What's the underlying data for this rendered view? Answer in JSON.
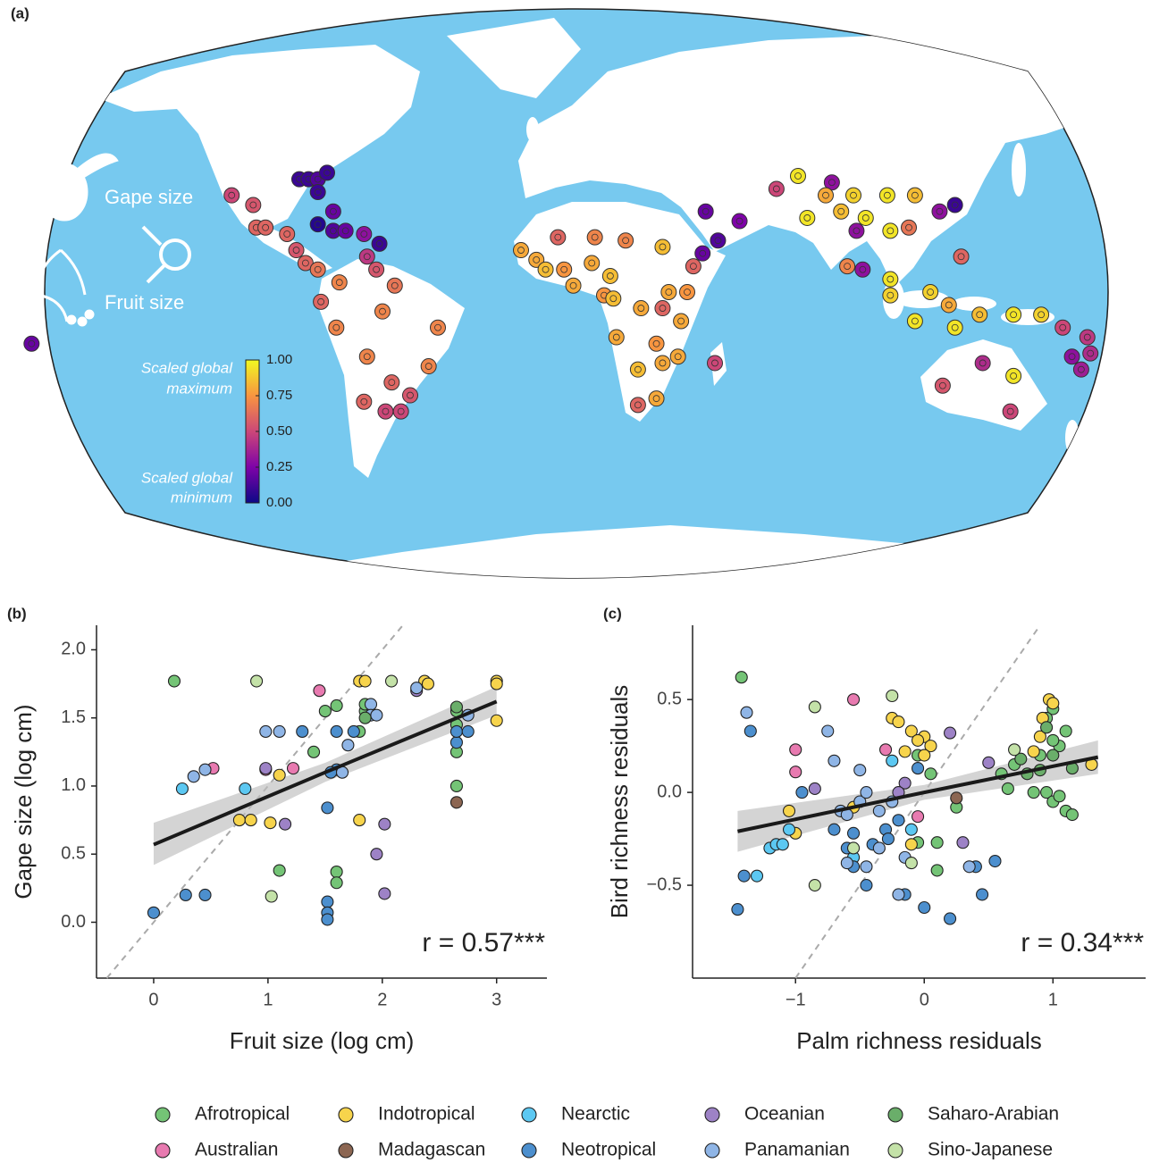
{
  "chart_data": [
    {
      "type": "map",
      "panel_label": "(a)",
      "arrow_labels": [
        "Gape size",
        "Fruit size"
      ],
      "colorbar_top_label": [
        "Scaled global",
        "maximum"
      ],
      "colorbar_bottom_label": [
        "Scaled global",
        "minimum"
      ],
      "colorbar": {
        "lim": [
          0,
          1
        ],
        "ticks": [
          {
            "value": 0,
            "label": "0.00"
          },
          {
            "value": 0.25,
            "label": "0.25"
          },
          {
            "value": 0.5,
            "label": "0.50"
          },
          {
            "value": 0.75,
            "label": "0.75"
          },
          {
            "value": 1,
            "label": "1.00"
          }
        ],
        "colors": [
          "#0d0887",
          "#7e03a8",
          "#cc4778",
          "#f89540",
          "#f0f921"
        ]
      },
      "points": {
        "lon": [
          -112,
          -105,
          -104,
          -101,
          -94,
          -91,
          -88,
          -84,
          -90,
          -87,
          -84,
          -81,
          -84,
          -79,
          -84,
          -79,
          -75,
          -69,
          -64,
          -68,
          -65,
          -77,
          -83,
          -63,
          -78,
          -45,
          -68,
          -48,
          -60,
          -69,
          -54,
          -62,
          -57,
          -59,
          -18,
          -13,
          -6,
          6,
          16,
          28,
          -10,
          -4,
          5,
          11,
          -1,
          9,
          12,
          21,
          30,
          36,
          28,
          13,
          26,
          34,
          20,
          28,
          26,
          20,
          38,
          41,
          45,
          33,
          42,
          53,
          46,
          65,
          72,
          83,
          81,
          90,
          101,
          110,
          75,
          86,
          94,
          102,
          108,
          91,
          93,
          88,
          102,
          102,
          115,
          123,
          118,
          121,
          123,
          110,
          131,
          142,
          151,
          125,
          132,
          142,
          119,
          141,
          158,
          166,
          161,
          167,
          164,
          -177
        ],
        "lat": [
          30,
          27,
          20,
          20,
          18,
          13,
          9,
          7,
          35,
          35,
          35,
          37,
          31,
          25,
          21,
          19,
          19,
          18,
          15,
          11,
          7,
          3,
          -3,
          -6,
          -11,
          -11,
          -20,
          -23,
          -28,
          -34,
          -32,
          -37,
          -37,
          2,
          13,
          10,
          17,
          17,
          16,
          14,
          7,
          7,
          9,
          5,
          2,
          -1,
          -2,
          -5,
          0,
          0,
          -5,
          -14,
          -16,
          -9,
          -24,
          -22,
          -33,
          -35,
          8,
          12,
          -22,
          -20,
          25,
          22,
          16,
          32,
          36,
          34,
          30,
          30,
          30,
          30,
          23,
          25,
          23,
          19,
          20,
          19,
          7,
          8,
          4,
          -1,
          0,
          27,
          25,
          -4,
          -11,
          -9,
          -7,
          -7,
          -7,
          11,
          -22,
          -26,
          -29,
          -37,
          -11,
          -14,
          -20,
          -19,
          -24,
          -16
        ],
        "values": [
          0.5,
          0.55,
          0.6,
          0.6,
          0.6,
          0.55,
          0.6,
          0.65,
          0.1,
          0.1,
          0.15,
          0.1,
          0.1,
          0.2,
          0.05,
          0.15,
          0.2,
          0.3,
          0.1,
          0.45,
          0.55,
          0.7,
          0.6,
          0.7,
          0.7,
          0.7,
          0.7,
          0.7,
          0.6,
          0.6,
          0.55,
          0.5,
          0.5,
          0.65,
          0.8,
          0.8,
          0.6,
          0.7,
          0.7,
          0.85,
          0.85,
          0.75,
          0.8,
          0.85,
          0.8,
          0.75,
          0.85,
          0.8,
          0.8,
          0.75,
          0.6,
          0.8,
          0.75,
          0.8,
          0.85,
          0.8,
          0.8,
          0.6,
          0.6,
          0.2,
          0.5,
          0.8,
          0.2,
          0.25,
          0.15,
          0.5,
          0.95,
          0.3,
          0.8,
          0.9,
          0.95,
          0.85,
          0.95,
          0.85,
          0.95,
          0.95,
          0.65,
          0.3,
          0.3,
          0.7,
          0.95,
          0.9,
          0.9,
          0.1,
          0.3,
          0.8,
          0.95,
          0.95,
          0.85,
          0.95,
          0.9,
          0.6,
          0.4,
          0.95,
          0.55,
          0.5,
          0.5,
          0.45,
          0.3,
          0.4,
          0.35,
          0.2
        ]
      }
    },
    {
      "type": "scatter",
      "panel_label": "(b)",
      "x_label": "Fruit size (log cm)",
      "y_label": "Gape size (log cm)",
      "annotation": "r = 0.57***",
      "xlim": [
        -0.5,
        3.44
      ],
      "ylim": [
        -0.41,
        2.18
      ],
      "xticks": [
        0,
        1,
        2,
        3
      ],
      "yticks": [
        {
          "value": 0,
          "label": "0.0"
        },
        0.5,
        {
          "value": 1,
          "label": "1.0"
        },
        1.5,
        {
          "value": 2,
          "label": "2.0"
        }
      ],
      "identity_line": true,
      "fit": {
        "x": [
          0,
          1.5,
          3
        ],
        "y": [
          0.57,
          1.1,
          1.62
        ],
        "lower": [
          0.42,
          1.03,
          1.52
        ],
        "upper": [
          0.73,
          1.17,
          1.73
        ]
      },
      "series": [
        {
          "name": "Afrotropical",
          "color": "#74c476",
          "x": [
            0.18,
            1.1,
            1.6,
            1.6,
            1.5,
            1.6,
            1.85,
            1.85,
            1.8,
            2.65,
            2.65,
            2.65,
            2.65,
            1.4
          ],
          "values": [
            1.77,
            0.38,
            0.37,
            0.29,
            1.55,
            1.59,
            1.55,
            1.6,
            1.4,
            1.55,
            1.25,
            1.0,
            1.45,
            1.25
          ]
        },
        {
          "name": "Australian",
          "color": "#e87ab0",
          "x": [
            0.52,
            0.98,
            1.22,
            1.45
          ],
          "values": [
            1.13,
            1.12,
            1.13,
            1.7
          ]
        },
        {
          "name": "Indotropical",
          "color": "#f7d44c",
          "x": [
            0.75,
            0.85,
            1.02,
            1.1,
            1.8,
            1.85,
            1.8,
            2.37,
            2.4,
            3.0,
            3.0,
            3.0
          ],
          "values": [
            0.75,
            0.75,
            0.73,
            1.08,
            1.77,
            1.77,
            0.75,
            1.77,
            1.75,
            1.77,
            1.75,
            1.48
          ]
        },
        {
          "name": "Madagascan",
          "color": "#8c6652",
          "x": [
            2.65
          ],
          "values": [
            0.88
          ]
        },
        {
          "name": "Nearctic",
          "color": "#5cc8f2",
          "x": [
            0.25,
            0.8
          ],
          "values": [
            0.98,
            0.98
          ]
        },
        {
          "name": "Neotropical",
          "color": "#4c8fce",
          "x": [
            0,
            0.28,
            0.45,
            1.52,
            1.52,
            1.52,
            1.52,
            1.6,
            1.55,
            1.3,
            1.6,
            1.75,
            2.65,
            2.65,
            2.75
          ],
          "values": [
            0.07,
            0.2,
            0.2,
            0.15,
            0.07,
            0.02,
            0.84,
            1.12,
            1.1,
            1.4,
            1.4,
            1.4,
            1.32,
            1.4,
            1.4
          ]
        },
        {
          "name": "Oceanian",
          "color": "#9d82c6",
          "x": [
            0.98,
            1.15,
            1.95,
            2.02,
            2.02,
            2.3
          ],
          "values": [
            1.13,
            0.72,
            0.5,
            0.72,
            0.21,
            1.7
          ]
        },
        {
          "name": "Panamanian",
          "color": "#8fb5e6",
          "x": [
            0.35,
            0.45,
            0.98,
            1.1,
            1.7,
            1.9,
            1.9,
            1.95,
            1.65,
            2.3,
            2.75
          ],
          "values": [
            1.07,
            1.12,
            1.4,
            1.4,
            1.3,
            1.6,
            1.52,
            1.52,
            1.1,
            1.72,
            1.52
          ]
        },
        {
          "name": "Saharo-Arabian",
          "color": "#6aae6a",
          "x": [
            2.65,
            1.85
          ],
          "values": [
            1.58,
            1.5
          ]
        },
        {
          "name": "Sino-Japanese",
          "color": "#c4e2a8",
          "x": [
            0.9,
            1.03,
            2.08
          ],
          "values": [
            1.77,
            0.19,
            1.77
          ]
        }
      ]
    },
    {
      "type": "scatter",
      "panel_label": "(c)",
      "x_label": "Palm richness residuals",
      "y_label": "Bird richness residuals",
      "annotation": "r = 0.34***",
      "xlim": [
        -1.8,
        1.72
      ],
      "ylim": [
        -1.0,
        0.9
      ],
      "xticks": [
        {
          "value": -1,
          "label": "−1"
        },
        0,
        1
      ],
      "yticks": [
        {
          "value": -0.5,
          "label": "−0.5"
        },
        {
          "value": 0,
          "label": "0.0"
        },
        0.5
      ],
      "identity_line": true,
      "fit": {
        "x": [
          -1.45,
          0,
          1.35
        ],
        "y": [
          -0.21,
          0.0,
          0.19
        ],
        "lower": [
          -0.32,
          -0.04,
          0.1
        ],
        "upper": [
          -0.1,
          0.04,
          0.28
        ]
      },
      "series": [
        {
          "name": "Afrotropical",
          "color": "#74c476",
          "x": [
            -1.42,
            1.0,
            0.95,
            1.1,
            1.05,
            0.9,
            0.7,
            0.6,
            0.65,
            0.95,
            1.0,
            1.1,
            1.15,
            -0.05,
            0.1,
            0.1,
            -0.05,
            0.05,
            0.25,
            1.0,
            1.05,
            0.85
          ],
          "values": [
            0.62,
            0.45,
            0.4,
            0.33,
            0.25,
            0.2,
            0.15,
            0.1,
            0.02,
            0.0,
            -0.05,
            -0.1,
            -0.12,
            -0.27,
            -0.27,
            -0.42,
            0.2,
            0.1,
            -0.08,
            0.28,
            -0.02,
            0.0
          ]
        },
        {
          "name": "Australian",
          "color": "#e87ab0",
          "x": [
            -1.0,
            -1.0,
            -0.55,
            -0.3,
            -0.05
          ],
          "values": [
            0.23,
            0.11,
            0.5,
            0.23,
            -0.13
          ]
        },
        {
          "name": "Indotropical",
          "color": "#f7d44c",
          "x": [
            -1.05,
            -1.0,
            -0.25,
            -0.2,
            -0.1,
            0.0,
            0.05,
            -0.05,
            0.0,
            -0.15,
            0.9,
            0.92,
            0.97,
            1.0,
            0.85,
            1.3,
            -0.1,
            -0.55
          ],
          "values": [
            -0.1,
            -0.22,
            0.4,
            0.38,
            0.33,
            0.3,
            0.25,
            0.28,
            0.2,
            0.22,
            0.3,
            0.4,
            0.5,
            0.48,
            0.22,
            0.15,
            -0.28,
            -0.08
          ]
        },
        {
          "name": "Madagascan",
          "color": "#8c6652",
          "x": [
            0.25
          ],
          "values": [
            -0.03
          ]
        },
        {
          "name": "Nearctic",
          "color": "#5cc8f2",
          "x": [
            -1.3,
            -1.2,
            -1.15,
            -1.1,
            -1.05,
            -0.55,
            -0.25,
            -0.1
          ],
          "values": [
            -0.45,
            -0.3,
            -0.28,
            -0.28,
            -0.2,
            -0.35,
            0.17,
            -0.2
          ]
        },
        {
          "name": "Neotropical",
          "color": "#4c8fce",
          "x": [
            -1.45,
            -1.4,
            -0.7,
            -0.45,
            -0.55,
            -0.6,
            -0.4,
            -0.3,
            -0.28,
            -0.2,
            -0.15,
            -0.05,
            0.0,
            0.2,
            0.4,
            0.45,
            0.55,
            -1.35,
            -0.55,
            -0.95
          ],
          "values": [
            -0.63,
            -0.45,
            -0.2,
            -0.5,
            -0.4,
            -0.3,
            -0.28,
            -0.2,
            -0.25,
            -0.15,
            -0.55,
            0.13,
            -0.62,
            -0.68,
            -0.4,
            -0.55,
            -0.37,
            0.33,
            -0.22,
            0.0
          ]
        },
        {
          "name": "Oceanian",
          "color": "#9d82c6",
          "x": [
            -0.85,
            0.2,
            0.5,
            0.3,
            -0.15,
            -0.2
          ],
          "values": [
            0.02,
            0.32,
            0.16,
            -0.27,
            0.05,
            0.0
          ]
        },
        {
          "name": "Panamanian",
          "color": "#8fb5e6",
          "x": [
            -1.38,
            -0.75,
            -0.65,
            -0.6,
            -0.5,
            -0.35,
            -0.45,
            -0.7,
            -0.5,
            -0.15,
            -0.2,
            -0.25,
            0.35,
            -0.45,
            -0.35,
            -0.6
          ],
          "values": [
            0.43,
            0.33,
            -0.1,
            -0.12,
            -0.05,
            -0.1,
            0.0,
            0.17,
            0.12,
            -0.35,
            -0.55,
            -0.05,
            -0.4,
            -0.4,
            -0.3,
            -0.38
          ]
        },
        {
          "name": "Saharo-Arabian",
          "color": "#6aae6a",
          "x": [
            0.8,
            1.0,
            0.9,
            0.75,
            0.95,
            1.15
          ],
          "values": [
            0.1,
            0.2,
            0.12,
            0.18,
            0.35,
            0.13
          ]
        },
        {
          "name": "Sino-Japanese",
          "color": "#c4e2a8",
          "x": [
            -0.85,
            -0.85,
            -0.25,
            -0.55,
            -0.1,
            0.7
          ],
          "values": [
            0.46,
            -0.5,
            0.52,
            -0.3,
            -0.38,
            0.23
          ]
        }
      ]
    }
  ]
}
